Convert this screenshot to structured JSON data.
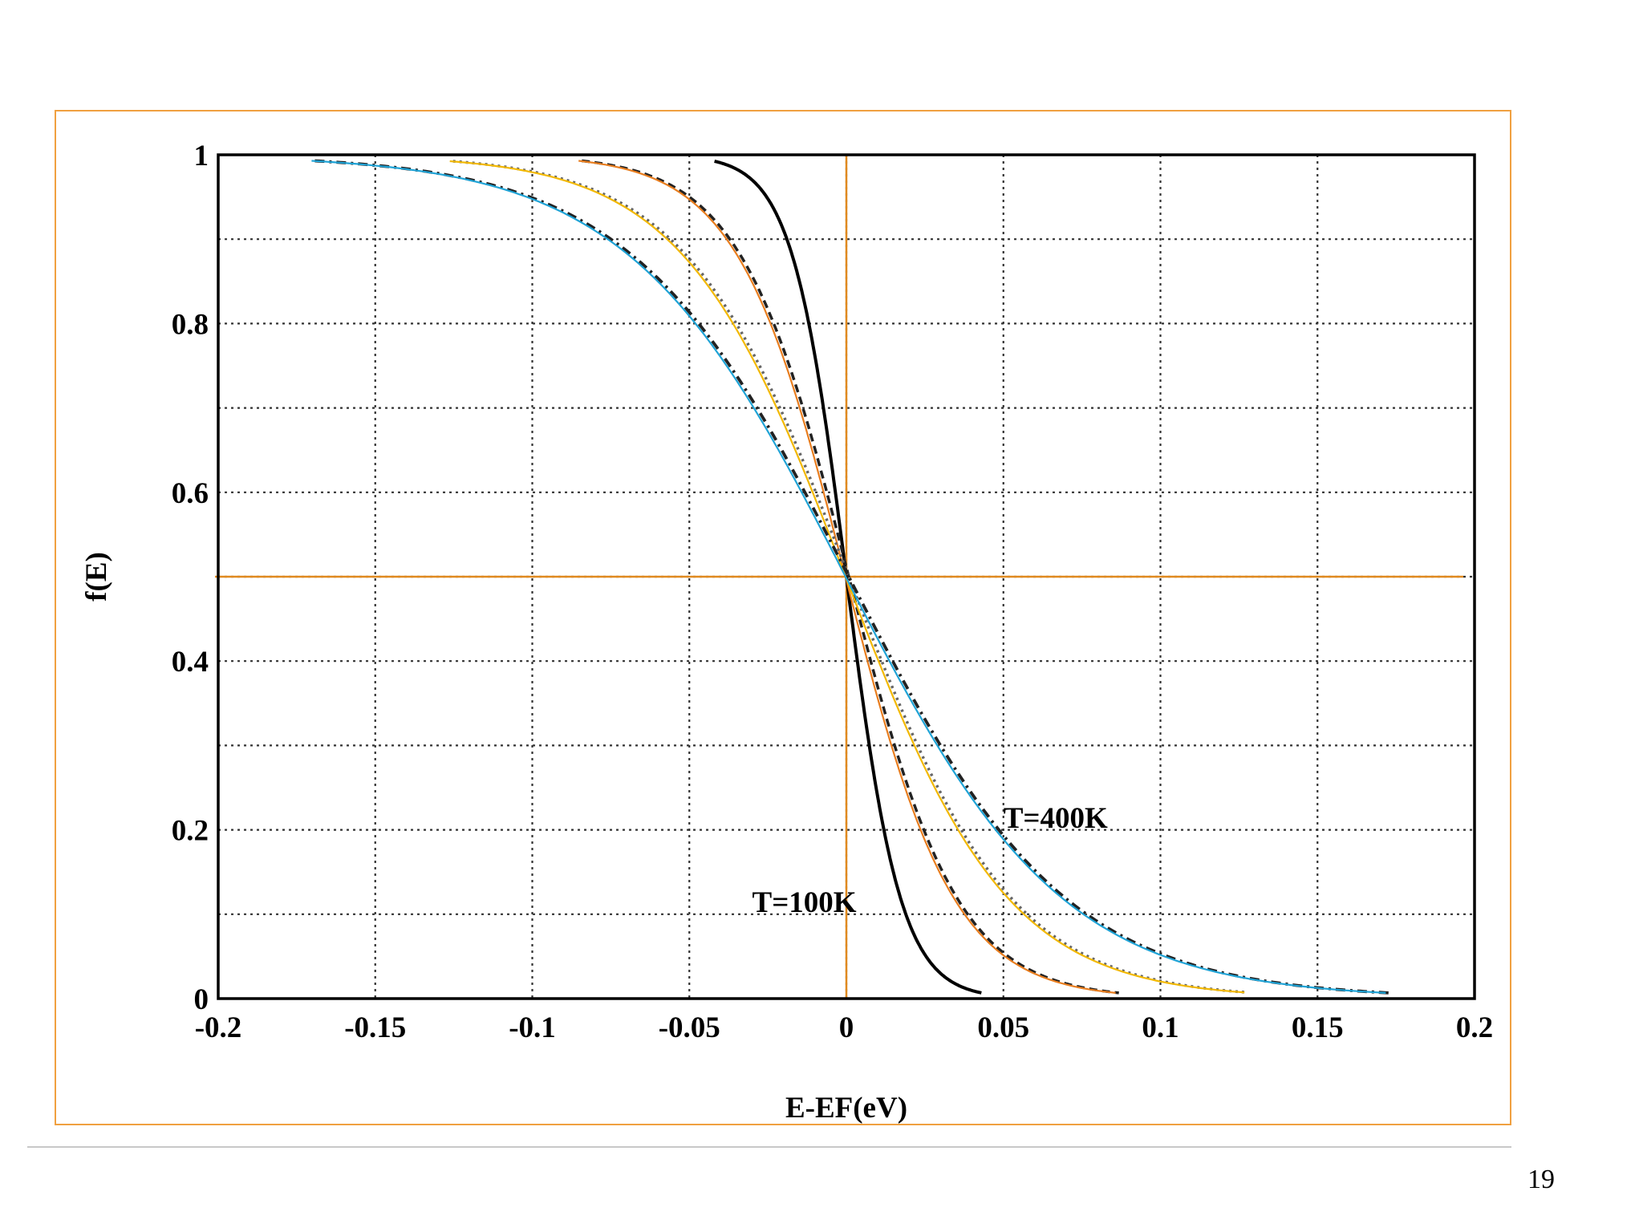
{
  "page_number": "19",
  "colors": {
    "frame": "#f0a040",
    "crosshair": "#e08a20",
    "grid": "#333333",
    "curve_100K": "#000000",
    "curve_200K_trace": "#e87d1e",
    "curve_300K_trace": "#f2b800",
    "curve_400K_trace": "#1fa3d6",
    "curve_dotted": "#666666",
    "curve_dashed": "#222222"
  },
  "chart_data": {
    "type": "line",
    "xlabel": "E-EF(eV)",
    "ylabel": "f(E)",
    "xlim": [
      -0.2,
      0.2
    ],
    "ylim": [
      0,
      1
    ],
    "xticks": [
      "-0.2",
      "-0.15",
      "-0.1",
      "-0.05",
      "0",
      "0.05",
      "0.1",
      "0.15",
      "0.2"
    ],
    "yticks": [
      "0",
      "0.2",
      "0.4",
      "0.6",
      "0.8",
      "1"
    ],
    "grid": true,
    "reference_lines": {
      "horizontal_y": 0.5,
      "vertical_x": 0
    },
    "annotations": [
      {
        "text": "T=100K",
        "x": -0.03,
        "y": 0.115
      },
      {
        "text": "T=400K",
        "x": 0.05,
        "y": 0.215
      }
    ],
    "series": [
      {
        "temperature_K": 100,
        "x_range": [
          -0.042,
          0.043
        ],
        "style": "solid"
      },
      {
        "temperature_K": 200,
        "x_range": [
          -0.085,
          0.086
        ],
        "style": "dashed"
      },
      {
        "temperature_K": 300,
        "x_range": [
          -0.126,
          0.127
        ],
        "style": "dotted"
      },
      {
        "temperature_K": 400,
        "x_range": [
          -0.17,
          0.172
        ],
        "style": "dash-dot"
      }
    ]
  }
}
